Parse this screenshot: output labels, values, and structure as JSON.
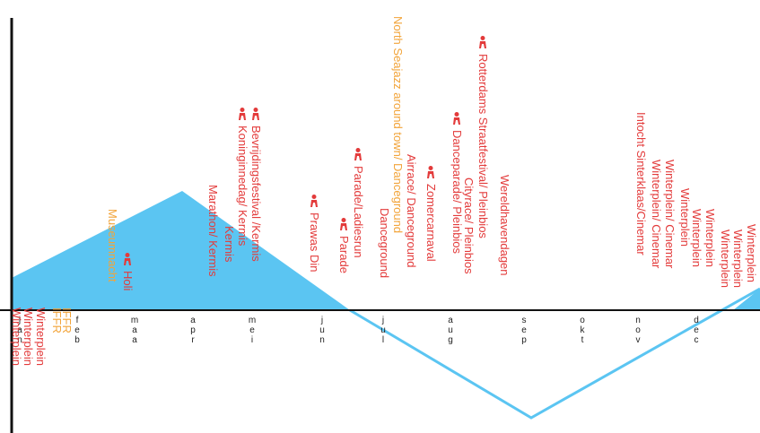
{
  "colors": {
    "axis": "#111111",
    "wave": "#5bc5f2",
    "fill": "#5bc5f2",
    "event_red": "#e33b3b",
    "event_orange": "#f2a43a"
  },
  "months": [
    "jan",
    "feb",
    "maa",
    "apr",
    "mei",
    "jun",
    "jul",
    "aug",
    "sep",
    "okt",
    "nov",
    "dec"
  ],
  "events": [
    {
      "text": "Winterplein",
      "color": "red",
      "icon": false
    },
    {
      "text": "Winterplein",
      "color": "red",
      "icon": false
    },
    {
      "text": "Winterplein",
      "color": "red",
      "icon": false
    },
    {
      "text": "IFFR",
      "color": "orange",
      "icon": false
    },
    {
      "text": "IFFR",
      "color": "orange",
      "icon": false
    },
    {
      "text": "Museumnacht",
      "color": "orange",
      "icon": false
    },
    {
      "text": "Holi",
      "color": "red",
      "icon": true
    },
    {
      "text": "Marathon/ Kermis",
      "color": "red",
      "icon": false
    },
    {
      "text": "Kermis",
      "color": "red",
      "icon": false
    },
    {
      "text": "Koninginnedag/ Kermis",
      "color": "red",
      "icon": true
    },
    {
      "text": "Bevrijdingsfestival /Kermis",
      "color": "red",
      "icon": true
    },
    {
      "text": "Prawas Din",
      "color": "red",
      "icon": true
    },
    {
      "text": "Parade",
      "color": "red",
      "icon": true
    },
    {
      "text": "Parade/Ladiesrun",
      "color": "red",
      "icon": true
    },
    {
      "text": "Danceground",
      "color": "red",
      "icon": false
    },
    {
      "text": "North Seajazz around town/ Danceground",
      "color": "orange",
      "icon": false
    },
    {
      "text": "Airrace/ Danceground",
      "color": "red",
      "icon": false
    },
    {
      "text": "Zomercarnaval",
      "color": "red",
      "icon": true
    },
    {
      "text": "Danceparade/ Pleinbios",
      "color": "red",
      "icon": true
    },
    {
      "text": "Cityrace/ Pleinbios",
      "color": "red",
      "icon": false
    },
    {
      "text": "Rotterdams Straatfestival/ Pleinbios",
      "color": "red",
      "icon": true
    },
    {
      "text": "Wereldhavendagen",
      "color": "red",
      "icon": false
    },
    {
      "text": "Intocht Sinterklaas/Cinemar",
      "color": "red",
      "icon": false
    },
    {
      "text": "Winterplein/ Cinemar",
      "color": "red",
      "icon": false
    },
    {
      "text": "Winterplein/ Cinemar",
      "color": "red",
      "icon": false
    },
    {
      "text": "Winterplein",
      "color": "red",
      "icon": false
    },
    {
      "text": "Winterplein",
      "color": "red",
      "icon": false
    },
    {
      "text": "Winterplein",
      "color": "red",
      "icon": false
    },
    {
      "text": "Winterplein",
      "color": "red",
      "icon": false
    },
    {
      "text": "Winterplein",
      "color": "red",
      "icon": false
    },
    {
      "text": "Winterplein",
      "color": "red",
      "icon": false
    }
  ]
}
